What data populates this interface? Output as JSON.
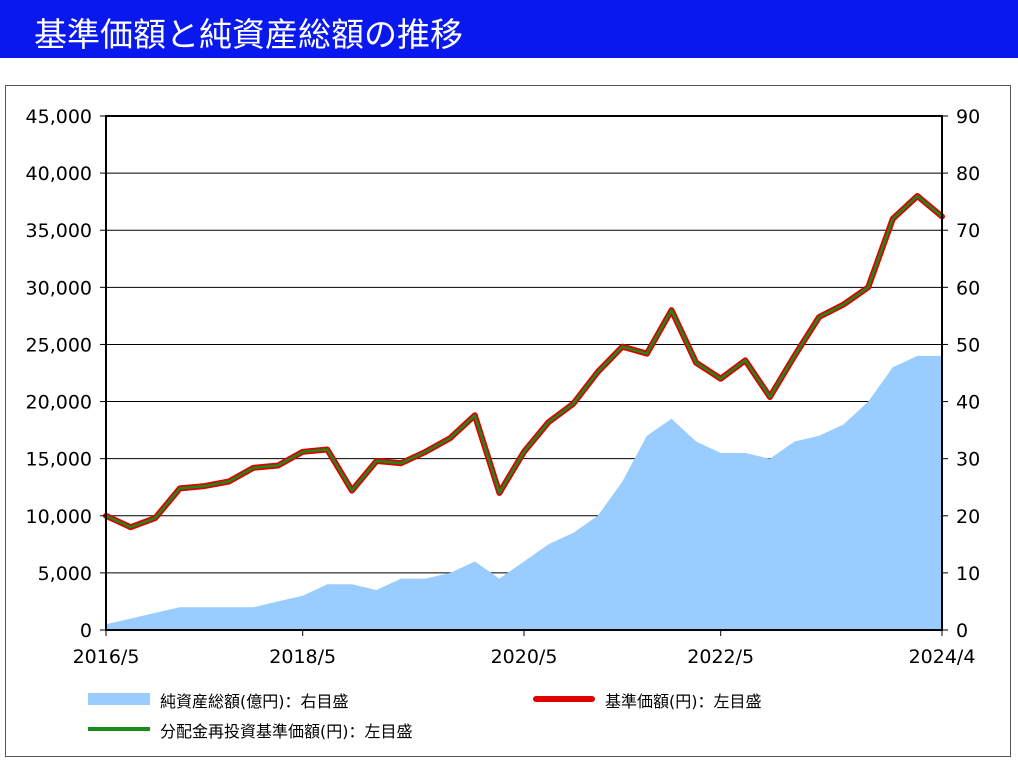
{
  "header": {
    "title": "基準価額と純資産総額の推移"
  },
  "colors": {
    "header_bg": "#0a18f0",
    "nav_line": "#e00000",
    "reinvest_line": "#1a8a1a",
    "assets_area": "#99ccff"
  },
  "legend": [
    {
      "label": "純資産総額(億円)：右目盛",
      "color": "#99ccff",
      "kind": "area"
    },
    {
      "label": "基準価額(円)：左目盛",
      "color": "#e00000",
      "kind": "line"
    },
    {
      "label": "分配金再投資基準価額(円)：左目盛",
      "color": "#1a8a1a",
      "kind": "line"
    }
  ],
  "chart_data": {
    "type": "line",
    "x": [
      "2016/5",
      "2016/8",
      "2016/11",
      "2017/2",
      "2017/5",
      "2017/8",
      "2017/11",
      "2018/2",
      "2018/5",
      "2018/8",
      "2018/11",
      "2019/2",
      "2019/5",
      "2019/8",
      "2019/11",
      "2020/2",
      "2020/3",
      "2020/5",
      "2020/8",
      "2020/11",
      "2021/2",
      "2021/5",
      "2021/8",
      "2021/11",
      "2022/2",
      "2022/5",
      "2022/8",
      "2022/11",
      "2023/2",
      "2023/5",
      "2023/8",
      "2023/11",
      "2024/2",
      "2024/3",
      "2024/4"
    ],
    "xticks": [
      "2016/5",
      "2018/5",
      "2020/5",
      "2022/5",
      "2024/4"
    ],
    "y_left": {
      "ylim": [
        0,
        45000
      ],
      "ticks": [
        "0",
        "5,000",
        "10,000",
        "15,000",
        "20,000",
        "25,000",
        "30,000",
        "35,000",
        "40,000",
        "45,000"
      ]
    },
    "y_right": {
      "ylim": [
        0,
        90
      ],
      "ticks": [
        "0",
        "10",
        "20",
        "30",
        "40",
        "50",
        "60",
        "70",
        "80",
        "90"
      ]
    },
    "grid": true,
    "series": [
      {
        "name": "純資産総額(億円)：右目盛",
        "axis": "right",
        "style": "area",
        "values": [
          1,
          2,
          3,
          4,
          4,
          4,
          4,
          5,
          6,
          8,
          8,
          7,
          9,
          9,
          10,
          12,
          9,
          12,
          15,
          17,
          20,
          26,
          34,
          37,
          33,
          31,
          31,
          30,
          33,
          34,
          36,
          40,
          46,
          48,
          48
        ]
      },
      {
        "name": "基準価額(円)：左目盛",
        "axis": "left",
        "style": "line",
        "values": [
          10000,
          9000,
          9800,
          12400,
          12600,
          13000,
          14200,
          14400,
          15600,
          15800,
          12200,
          14800,
          14600,
          15600,
          16800,
          18800,
          12000,
          15600,
          18200,
          19800,
          22600,
          24800,
          24200,
          28000,
          23400,
          22000,
          23600,
          20400,
          24000,
          27400,
          28500,
          30000,
          36000,
          38000,
          36200
        ]
      },
      {
        "name": "分配金再投資基準価額(円)：左目盛",
        "axis": "left",
        "style": "line",
        "values": [
          10000,
          9000,
          9800,
          12400,
          12600,
          13000,
          14200,
          14400,
          15600,
          15800,
          12200,
          14800,
          14600,
          15600,
          16800,
          18800,
          12000,
          15600,
          18200,
          19800,
          22600,
          24800,
          24200,
          28000,
          23400,
          22000,
          23600,
          20400,
          24000,
          27400,
          28500,
          30000,
          36000,
          38000,
          36200
        ]
      }
    ]
  }
}
